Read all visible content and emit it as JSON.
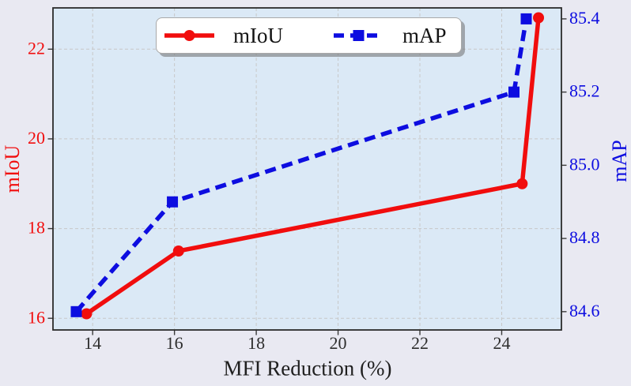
{
  "chart_data": {
    "type": "line",
    "title": "",
    "xlabel": "MFI Reduction (%)",
    "ylabel_left": "mIoU",
    "ylabel_right": "mAP",
    "xlim": [
      13.03,
      25.46
    ],
    "ylim_left": [
      15.74,
      22.92
    ],
    "ylim_right": [
      84.55,
      85.43
    ],
    "x_ticks": [
      "14",
      "16",
      "18",
      "20",
      "22",
      "24"
    ],
    "y_ticks_left": [
      "16",
      "18",
      "20",
      "22"
    ],
    "y_ticks_right": [
      "84.6",
      "84.8",
      "85.0",
      "85.2",
      "85.4"
    ],
    "grid": true,
    "grid_axis_for_horizontal_lines": "left",
    "legend_location": "upper center",
    "series": [
      {
        "name": "mIoU",
        "axis": "left",
        "color": "#f10d0d",
        "line_style": "solid",
        "marker": "circle",
        "x": [
          13.85,
          16.1,
          24.5,
          24.9
        ],
        "y": [
          16.1,
          17.5,
          19.0,
          22.7
        ]
      },
      {
        "name": "mAP",
        "axis": "right",
        "color": "#0d0de0",
        "line_style": "dashed",
        "marker": "square",
        "x": [
          13.6,
          15.95,
          24.3,
          24.6
        ],
        "y": [
          84.6,
          84.9,
          85.2,
          85.4
        ]
      }
    ],
    "colors": {
      "figure_background": "#e9e9f2",
      "plot_background": "#dbe9f6",
      "gridline": "#c8c8c8",
      "spine": "#2b2b2b",
      "x_tick_text": "#2e2e2e",
      "x_label_text": "#1f1f1f"
    }
  }
}
